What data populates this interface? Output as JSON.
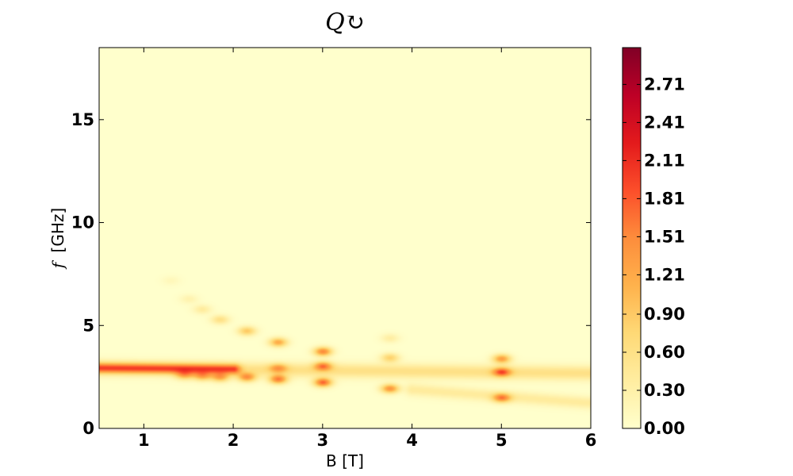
{
  "chart_data": {
    "type": "heatmap",
    "title": "Q↻",
    "xlabel": "B [T]",
    "ylabel_symbol": "f",
    "ylabel_unit": "[GHz]",
    "xlim": [
      0.5,
      6
    ],
    "ylim": [
      0,
      18.5
    ],
    "xticks": [
      1,
      2,
      3,
      4,
      5,
      6
    ],
    "yticks": [
      0,
      5,
      10,
      15
    ],
    "colormap": "YlOrRd",
    "colorbar": {
      "vmin": 0,
      "vmax": 3.0,
      "ticks": [
        "0.00",
        "0.30",
        "0.60",
        "0.90",
        "1.21",
        "1.51",
        "1.81",
        "2.11",
        "2.41",
        "2.71"
      ],
      "colors": [
        "#ffffcc",
        "#ffeda0",
        "#fed976",
        "#feb24c",
        "#fd8d3c",
        "#fc4e2a",
        "#e31a1c",
        "#bd0026",
        "#800026"
      ]
    },
    "features": [
      {
        "kind": "band",
        "B": [
          0.5,
          6
        ],
        "f_start": 2.95,
        "f_end": 2.7,
        "value": 0.6,
        "width_f": 0.35
      },
      {
        "kind": "band",
        "B": [
          0.5,
          2.0
        ],
        "f_start": 2.95,
        "f_end": 2.9,
        "value": 1.4,
        "width_f": 0.25
      },
      {
        "kind": "band",
        "B": [
          4.0,
          6.0
        ],
        "f_start": 1.9,
        "f_end": 1.25,
        "value": 0.4,
        "width_f": 0.3
      },
      {
        "kind": "spot",
        "B": 1.45,
        "f": 2.6,
        "value": 0.9
      },
      {
        "kind": "spot",
        "B": 1.65,
        "f": 2.55,
        "value": 1.0
      },
      {
        "kind": "spot",
        "B": 1.85,
        "f": 2.5,
        "value": 1.1
      },
      {
        "kind": "spot",
        "B": 2.15,
        "f": 2.5,
        "value": 1.3
      },
      {
        "kind": "spot",
        "B": 2.5,
        "f": 2.4,
        "value": 1.5
      },
      {
        "kind": "spot",
        "B": 3.0,
        "f": 2.25,
        "value": 1.7
      },
      {
        "kind": "spot",
        "B": 3.75,
        "f": 1.95,
        "value": 1.4
      },
      {
        "kind": "spot",
        "B": 5.0,
        "f": 1.5,
        "value": 1.3
      },
      {
        "kind": "spot",
        "B": 1.3,
        "f": 7.2,
        "value": 0.15
      },
      {
        "kind": "spot",
        "B": 1.5,
        "f": 6.3,
        "value": 0.25
      },
      {
        "kind": "spot",
        "B": 1.65,
        "f": 5.8,
        "value": 0.4
      },
      {
        "kind": "spot",
        "B": 1.85,
        "f": 5.3,
        "value": 0.6
      },
      {
        "kind": "spot",
        "B": 2.15,
        "f": 4.75,
        "value": 0.9
      },
      {
        "kind": "spot",
        "B": 2.5,
        "f": 4.2,
        "value": 1.2
      },
      {
        "kind": "spot",
        "B": 3.0,
        "f": 3.75,
        "value": 1.5
      },
      {
        "kind": "spot",
        "B": 3.75,
        "f": 4.4,
        "value": 0.35
      },
      {
        "kind": "spot",
        "B": 3.75,
        "f": 3.45,
        "value": 0.8
      },
      {
        "kind": "spot",
        "B": 5.0,
        "f": 3.4,
        "value": 1.3
      },
      {
        "kind": "spot",
        "B": 5.0,
        "f": 2.75,
        "value": 1.4
      },
      {
        "kind": "spot",
        "B": 3.0,
        "f": 3.05,
        "value": 1.3
      },
      {
        "kind": "spot",
        "B": 2.5,
        "f": 2.95,
        "value": 0.9
      }
    ]
  }
}
